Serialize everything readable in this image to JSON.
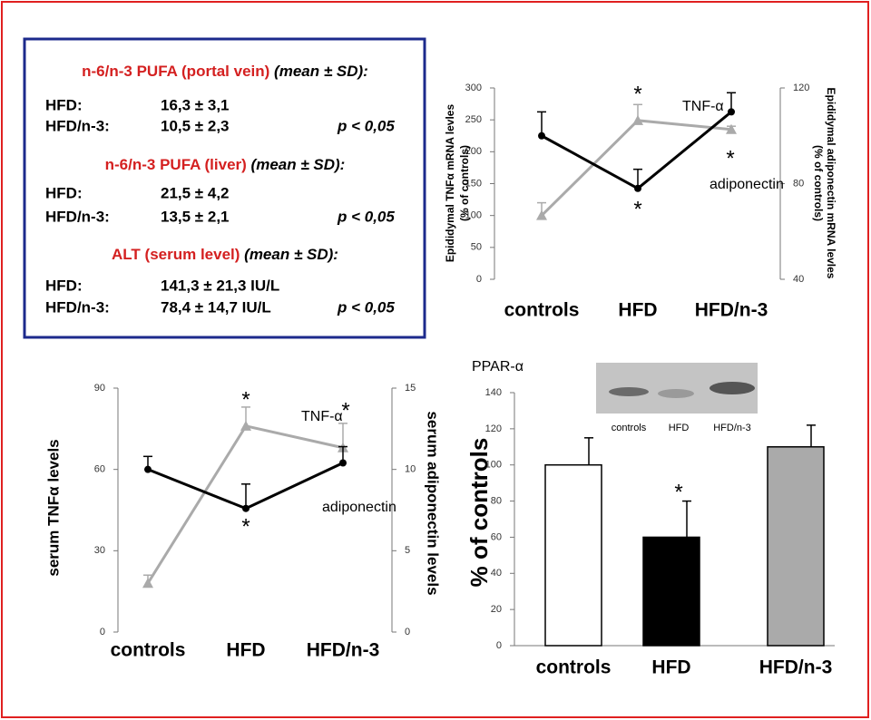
{
  "summary_box": {
    "sections": [
      {
        "title": "n-6/n-3 PUFA (portal vein)",
        "note": "(mean ± SD):",
        "rows": [
          {
            "group": "HFD:",
            "value": "16,3 ± 3,1"
          },
          {
            "group": "HFD/n-3:",
            "value": "10,5 ± 2,3",
            "p": "p < 0,05"
          }
        ]
      },
      {
        "title": "n-6/n-3 PUFA (liver)",
        "note": "(mean ± SD):",
        "rows": [
          {
            "group": "HFD:",
            "value": "21,5 ± 4,2"
          },
          {
            "group": "HFD/n-3:",
            "value": "13,5 ± 2,1",
            "p": "p < 0,05"
          }
        ]
      },
      {
        "title": "ALT (serum level)",
        "note": "(mean ± SD):",
        "rows": [
          {
            "group": "HFD:",
            "value": "141,3 ± 21,3 IU/L"
          },
          {
            "group": "HFD/n-3:",
            "value": "78,4 ± 14,7 IU/L",
            "p": "p < 0,05"
          }
        ]
      }
    ]
  },
  "chart_data": [
    {
      "type": "line",
      "categories": [
        "controls",
        "HFD",
        "HFD/n-3"
      ],
      "ylabel": [
        "Epididymal TNFα mRNA levles",
        "(% of controls)"
      ],
      "y2label": [
        "Epididymal adiponectin mRNA levles",
        "(% of controls)"
      ],
      "ylim": [
        0,
        300
      ],
      "yticks": [
        0,
        50,
        100,
        150,
        200,
        250,
        300
      ],
      "y2lim": [
        40,
        120
      ],
      "y2ticks": [
        40,
        80,
        120
      ],
      "series": [
        {
          "name": "TNF-α",
          "color": "#aaaaaa",
          "marker": "triangle",
          "values": [
            100,
            249,
            235
          ],
          "errors": [
            20,
            25,
            5
          ]
        },
        {
          "name": "adiponectin",
          "color": "#000000",
          "marker": "circle",
          "axis": "y2",
          "values": [
            100,
            78,
            110
          ],
          "errors": [
            10,
            8,
            8
          ]
        }
      ],
      "annotations": [
        "*",
        "*",
        "*"
      ]
    },
    {
      "type": "line",
      "categories": [
        "controls",
        "HFD",
        "HFD/n-3"
      ],
      "ylabel": [
        "serum TNFα levels"
      ],
      "y2label": [
        "serum adiponectin levels"
      ],
      "ylim": [
        0,
        90
      ],
      "yticks": [
        0,
        30,
        60,
        90
      ],
      "y2lim": [
        0,
        15
      ],
      "y2ticks": [
        0,
        5,
        10,
        15
      ],
      "series": [
        {
          "name": "TNF-α",
          "color": "#aaaaaa",
          "marker": "triangle",
          "values": [
            18,
            76,
            68
          ],
          "errors": [
            3,
            7,
            9
          ]
        },
        {
          "name": "adiponectin",
          "color": "#000000",
          "marker": "circle",
          "axis": "y2",
          "values": [
            10,
            7.6,
            10.4
          ],
          "errors": [
            0.8,
            1.5,
            1
          ]
        }
      ],
      "annotations": [
        "*",
        "*",
        "*"
      ]
    },
    {
      "type": "bar",
      "title": "PPAR-α",
      "ylabel": "% of controls",
      "categories": [
        "controls",
        "HFD",
        "HFD/n-3"
      ],
      "values": [
        100,
        60,
        110
      ],
      "errors": [
        15,
        20,
        12
      ],
      "colors": [
        "#ffffff",
        "#000000",
        "#aaaaaa"
      ],
      "ylim": [
        0,
        140
      ],
      "yticks": [
        0,
        20,
        40,
        60,
        80,
        100,
        120,
        140
      ],
      "inset_labels": [
        "controls",
        "HFD",
        "HFD/n-3"
      ],
      "annotations": [
        "*"
      ]
    }
  ]
}
